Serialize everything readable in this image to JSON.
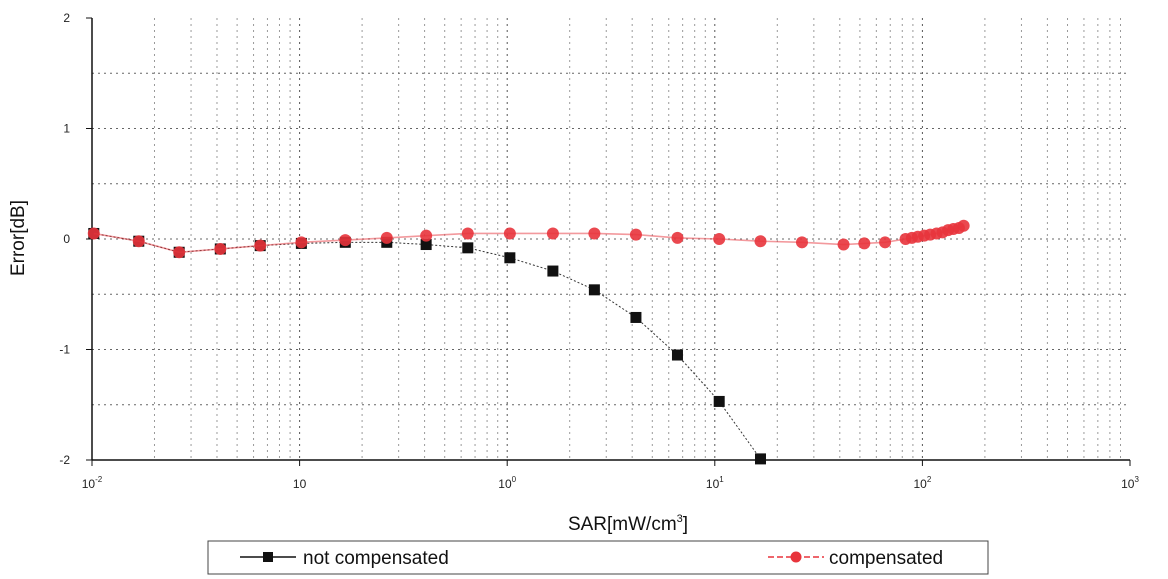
{
  "chart_data": {
    "type": "line",
    "xlabel": "SAR[mW/cm",
    "xlabel_sup": "3",
    "xlabel_close": "]",
    "ylabel": "Error[dB]",
    "xscale": "log",
    "xlim": [
      0.01,
      1000
    ],
    "ylim": [
      -2,
      2
    ],
    "grid": true,
    "legend_position": "bottom",
    "x_ticks": [
      {
        "value": 0.01,
        "label": "10",
        "sup": "-2"
      },
      {
        "value": 0.1,
        "label": "10",
        "sup": ""
      },
      {
        "value": 1,
        "label": "10",
        "sup": "0"
      },
      {
        "value": 10,
        "label": "10",
        "sup": "1"
      },
      {
        "value": 100,
        "label": "10",
        "sup": "2"
      },
      {
        "value": 1000,
        "label": "10",
        "sup": "3"
      }
    ],
    "y_ticks": [
      {
        "value": 2,
        "label": "2"
      },
      {
        "value": 1,
        "label": "1"
      },
      {
        "value": 0,
        "label": "0"
      },
      {
        "value": -1,
        "label": "-1"
      },
      {
        "value": -2,
        "label": "-2"
      }
    ],
    "series": [
      {
        "name": "not compensated",
        "color": "#111111",
        "marker": "square",
        "x": [
          0.0102,
          0.0168,
          0.0263,
          0.0415,
          0.0646,
          0.102,
          0.166,
          0.263,
          0.407,
          0.646,
          1.03,
          1.66,
          2.63,
          4.17,
          6.61,
          10.5,
          16.6
        ],
        "y": [
          0.05,
          -0.02,
          -0.12,
          -0.09,
          -0.06,
          -0.04,
          -0.03,
          -0.03,
          -0.05,
          -0.08,
          -0.17,
          -0.29,
          -0.46,
          -0.71,
          -1.05,
          -1.47,
          -1.99
        ]
      },
      {
        "name": "compensated",
        "color": "#e8343c",
        "marker": "circle",
        "x": [
          0.0102,
          0.0168,
          0.0263,
          0.0415,
          0.0646,
          0.102,
          0.166,
          0.263,
          0.407,
          0.646,
          1.03,
          1.66,
          2.63,
          4.17,
          6.61,
          10.5,
          16.6,
          26.3,
          41.7,
          52.5,
          66.1,
          83,
          89,
          95,
          102,
          109,
          117,
          125,
          133,
          141,
          150,
          158
        ],
        "y": [
          0.05,
          -0.02,
          -0.12,
          -0.09,
          -0.06,
          -0.03,
          -0.01,
          0.01,
          0.03,
          0.05,
          0.05,
          0.05,
          0.05,
          0.04,
          0.01,
          0.0,
          -0.02,
          -0.03,
          -0.05,
          -0.04,
          -0.03,
          0.0,
          0.01,
          0.02,
          0.03,
          0.04,
          0.05,
          0.06,
          0.08,
          0.09,
          0.1,
          0.12
        ]
      }
    ]
  }
}
